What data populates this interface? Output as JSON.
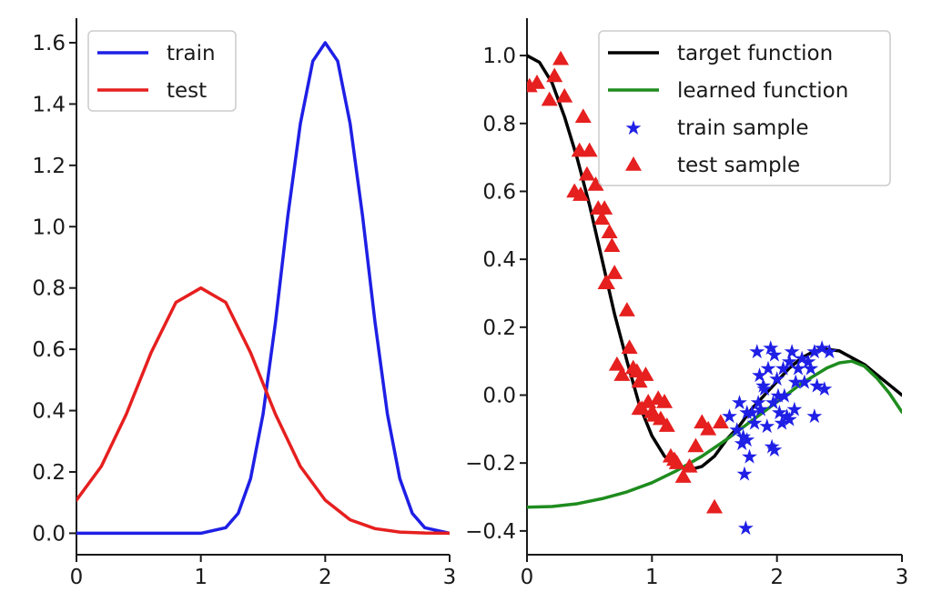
{
  "chart_data": [
    {
      "type": "line",
      "title": "",
      "xlabel": "",
      "ylabel": "",
      "xlim": [
        0,
        3
      ],
      "ylim": [
        -0.07,
        1.68
      ],
      "xticks": [
        "0",
        "1",
        "2",
        "3"
      ],
      "yticks": [
        "0.0",
        "0.2",
        "0.4",
        "0.6",
        "0.8",
        "1.0",
        "1.2",
        "1.4",
        "1.6"
      ],
      "grid": false,
      "legend_position": "top-left",
      "series": [
        {
          "name": "train",
          "color": "#1f1fe6",
          "x": [
            0,
            0.4,
            0.8,
            1.0,
            1.2,
            1.3,
            1.4,
            1.5,
            1.6,
            1.7,
            1.8,
            1.9,
            2.0,
            2.1,
            2.2,
            2.3,
            2.4,
            2.5,
            2.6,
            2.7,
            2.8,
            3.0
          ],
          "y": [
            0.0,
            0.0,
            0.0,
            0.0,
            0.018,
            0.065,
            0.178,
            0.388,
            0.689,
            1.036,
            1.336,
            1.54,
            1.6,
            1.54,
            1.336,
            1.036,
            0.689,
            0.388,
            0.178,
            0.065,
            0.018,
            0.0
          ]
        },
        {
          "name": "test",
          "color": "#e61f1f",
          "x": [
            0,
            0.2,
            0.4,
            0.6,
            0.8,
            1.0,
            1.2,
            1.4,
            1.6,
            1.8,
            2.0,
            2.2,
            2.4,
            2.6,
            2.8,
            3.0
          ],
          "y": [
            0.108,
            0.218,
            0.388,
            0.589,
            0.753,
            0.8,
            0.753,
            0.589,
            0.388,
            0.218,
            0.108,
            0.044,
            0.015,
            0.004,
            0.001,
            0.0
          ]
        }
      ]
    },
    {
      "type": "scatter",
      "title": "",
      "xlabel": "",
      "ylabel": "",
      "xlim": [
        0,
        3
      ],
      "ylim": [
        -0.47,
        1.11
      ],
      "xticks": [
        "0",
        "1",
        "2",
        "3"
      ],
      "yticks": [
        "−0.4",
        "−0.2",
        "0.0",
        "0.2",
        "0.4",
        "0.6",
        "0.8",
        "1.0"
      ],
      "grid": false,
      "legend_position": "top-right",
      "series": [
        {
          "name": "target function",
          "kind": "line",
          "color": "#000000",
          "x": [
            0,
            0.1,
            0.2,
            0.3,
            0.4,
            0.5,
            0.6,
            0.7,
            0.8,
            0.9,
            1.0,
            1.1,
            1.2,
            1.3,
            1.4,
            1.5,
            1.6,
            1.7,
            1.8,
            1.9,
            2.0,
            2.1,
            2.2,
            2.3,
            2.4,
            2.5,
            2.6,
            2.7,
            2.8,
            2.9,
            3.0
          ],
          "y": [
            1.0,
            0.98,
            0.92,
            0.82,
            0.7,
            0.56,
            0.4,
            0.24,
            0.1,
            -0.03,
            -0.12,
            -0.18,
            -0.21,
            -0.22,
            -0.21,
            -0.18,
            -0.13,
            -0.09,
            -0.04,
            0.0,
            0.04,
            0.08,
            0.11,
            0.13,
            0.135,
            0.13,
            0.11,
            0.09,
            0.06,
            0.03,
            0.0
          ]
        },
        {
          "name": "learned function",
          "kind": "line",
          "color": "#1e8c1e",
          "x": [
            0,
            0.2,
            0.4,
            0.6,
            0.8,
            1.0,
            1.2,
            1.4,
            1.6,
            1.8,
            2.0,
            2.2,
            2.4,
            2.5,
            2.6,
            2.7,
            2.8,
            2.9,
            3.0
          ],
          "y": [
            -0.33,
            -0.328,
            -0.32,
            -0.305,
            -0.285,
            -0.258,
            -0.222,
            -0.18,
            -0.13,
            -0.075,
            -0.02,
            0.035,
            0.08,
            0.095,
            0.1,
            0.085,
            0.05,
            0.005,
            -0.05
          ]
        },
        {
          "name": "train sample",
          "kind": "markers",
          "marker": "star",
          "color": "#1f1fe6",
          "x": [
            1.62,
            1.68,
            1.7,
            1.72,
            1.74,
            1.75,
            1.76,
            1.78,
            1.8,
            1.82,
            1.84,
            1.85,
            1.87,
            1.89,
            1.9,
            1.92,
            1.93,
            1.95,
            1.96,
            1.97,
            1.98,
            2.0,
            2.01,
            2.02,
            2.04,
            2.05,
            2.06,
            2.08,
            2.1,
            2.12,
            2.14,
            2.15,
            2.17,
            2.2,
            2.22,
            2.25,
            2.27,
            2.3,
            2.32,
            2.36,
            2.38,
            2.42,
            1.73,
            1.76,
            1.86,
            1.98,
            2.1,
            2.3
          ],
          "y": [
            -0.06,
            -0.1,
            -0.02,
            -0.14,
            -0.23,
            -0.39,
            -0.13,
            -0.18,
            -0.05,
            -0.08,
            0.13,
            -0.02,
            -0.04,
            0.03,
            0.02,
            -0.09,
            0.08,
            0.14,
            -0.15,
            -0.02,
            -0.16,
            0.05,
            0.0,
            -0.05,
            -0.08,
            0.08,
            0.0,
            -0.06,
            0.1,
            0.13,
            -0.04,
            0.04,
            0.08,
            0.11,
            0.04,
            0.1,
            0.08,
            0.13,
            0.03,
            0.14,
            0.02,
            0.13,
            -0.12,
            -0.05,
            0.06,
            0.12,
            -0.07,
            -0.06
          ]
        },
        {
          "name": "test sample",
          "kind": "markers",
          "marker": "triangle",
          "color": "#e61f1f",
          "x": [
            0.02,
            0.08,
            0.18,
            0.22,
            0.27,
            0.3,
            0.38,
            0.42,
            0.45,
            0.48,
            0.5,
            0.55,
            0.57,
            0.6,
            0.62,
            0.64,
            0.66,
            0.68,
            0.7,
            0.72,
            0.76,
            0.8,
            0.82,
            0.85,
            0.88,
            0.9,
            0.92,
            0.95,
            0.97,
            1.0,
            1.02,
            1.05,
            1.07,
            1.1,
            1.12,
            1.15,
            1.18,
            1.2,
            1.25,
            1.3,
            1.35,
            1.4,
            1.45,
            1.5,
            1.55,
            0.43,
            0.63,
            0.9
          ],
          "y": [
            0.91,
            0.92,
            0.87,
            0.94,
            0.99,
            0.88,
            0.6,
            0.72,
            0.82,
            0.65,
            0.72,
            0.62,
            0.55,
            0.52,
            0.55,
            0.33,
            0.48,
            0.44,
            0.36,
            0.09,
            0.06,
            0.25,
            0.14,
            0.08,
            0.07,
            0.04,
            -0.04,
            0.06,
            -0.02,
            -0.05,
            -0.06,
            -0.01,
            -0.07,
            -0.02,
            -0.09,
            -0.18,
            -0.19,
            -0.2,
            -0.24,
            -0.21,
            -0.15,
            -0.08,
            -0.1,
            -0.33,
            -0.08,
            0.59,
            0.33,
            -0.04
          ]
        }
      ]
    }
  ]
}
